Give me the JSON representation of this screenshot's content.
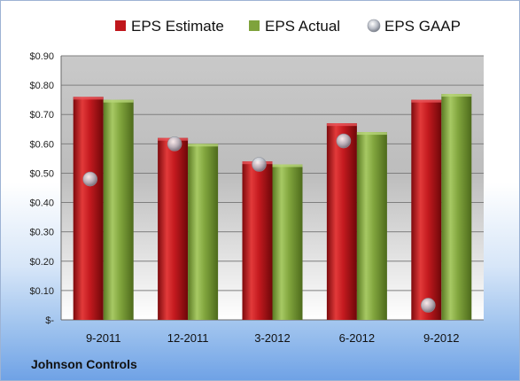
{
  "company_label": "Johnson Controls",
  "colors": {
    "estimate": "#c0171c",
    "actual": "#7fa33c",
    "gaap": "#c8ccd4"
  },
  "chart_data": {
    "type": "bar",
    "categories": [
      "9-2011",
      "12-2011",
      "3-2012",
      "6-2012",
      "9-2012"
    ],
    "series": [
      {
        "name": "EPS Estimate",
        "values": [
          0.76,
          0.62,
          0.54,
          0.67,
          0.75
        ]
      },
      {
        "name": "EPS Actual",
        "values": [
          0.75,
          0.6,
          0.53,
          0.64,
          0.77
        ]
      },
      {
        "name": "EPS GAAP",
        "style": "marker",
        "values": [
          0.48,
          0.6,
          0.53,
          0.61,
          0.05
        ]
      }
    ],
    "yticks": [
      "$-",
      "$0.10",
      "$0.20",
      "$0.30",
      "$0.40",
      "$0.50",
      "$0.60",
      "$0.70",
      "$0.80",
      "$0.90"
    ],
    "ylim": [
      0,
      0.9
    ],
    "grid": true,
    "legend": "top"
  }
}
